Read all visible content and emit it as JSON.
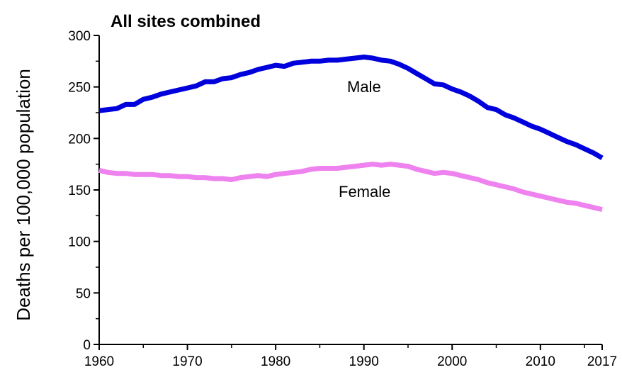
{
  "chart_data": {
    "type": "line",
    "title": "All sites combined",
    "xlabel": "",
    "ylabel": "Deaths per 100,000 population",
    "xlim": [
      1960,
      2017
    ],
    "ylim": [
      0,
      300
    ],
    "x_ticks": [
      1960,
      1970,
      1980,
      1990,
      2000,
      2010,
      2017
    ],
    "y_ticks": [
      0,
      50,
      100,
      150,
      200,
      250,
      300
    ],
    "grid": false,
    "legend": "none",
    "series": [
      {
        "name": "Male",
        "color": "#0000dd",
        "x": [
          1960,
          1961,
          1962,
          1963,
          1964,
          1965,
          1966,
          1967,
          1968,
          1969,
          1970,
          1971,
          1972,
          1973,
          1974,
          1975,
          1976,
          1977,
          1978,
          1979,
          1980,
          1981,
          1982,
          1983,
          1984,
          1985,
          1986,
          1987,
          1988,
          1989,
          1990,
          1991,
          1992,
          1993,
          1994,
          1995,
          1996,
          1997,
          1998,
          1999,
          2000,
          2001,
          2002,
          2003,
          2004,
          2005,
          2006,
          2007,
          2008,
          2009,
          2010,
          2011,
          2012,
          2013,
          2014,
          2015,
          2016,
          2017
        ],
        "values": [
          227,
          228,
          229,
          233,
          233,
          238,
          240,
          243,
          245,
          247,
          249,
          251,
          255,
          255,
          258,
          259,
          262,
          264,
          267,
          269,
          271,
          270,
          273,
          274,
          275,
          275,
          276,
          276,
          277,
          278,
          279,
          278,
          276,
          275,
          272,
          268,
          263,
          258,
          253,
          252,
          248,
          245,
          241,
          236,
          230,
          228,
          223,
          220,
          216,
          212,
          209,
          205,
          201,
          197,
          194,
          190,
          186,
          181
        ]
      },
      {
        "name": "Female",
        "color": "#ee82ee",
        "x": [
          1960,
          1961,
          1962,
          1963,
          1964,
          1965,
          1966,
          1967,
          1968,
          1969,
          1970,
          1971,
          1972,
          1973,
          1974,
          1975,
          1976,
          1977,
          1978,
          1979,
          1980,
          1981,
          1982,
          1983,
          1984,
          1985,
          1986,
          1987,
          1988,
          1989,
          1990,
          1991,
          1992,
          1993,
          1994,
          1995,
          1996,
          1997,
          1998,
          1999,
          2000,
          2001,
          2002,
          2003,
          2004,
          2005,
          2006,
          2007,
          2008,
          2009,
          2010,
          2011,
          2012,
          2013,
          2014,
          2015,
          2016,
          2017
        ],
        "values": [
          169,
          167,
          166,
          166,
          165,
          165,
          165,
          164,
          164,
          163,
          163,
          162,
          162,
          161,
          161,
          160,
          162,
          163,
          164,
          163,
          165,
          166,
          167,
          168,
          170,
          171,
          171,
          171,
          172,
          173,
          174,
          175,
          174,
          175,
          174,
          173,
          170,
          168,
          166,
          167,
          166,
          164,
          162,
          160,
          157,
          155,
          153,
          151,
          148,
          146,
          144,
          142,
          140,
          138,
          137,
          135,
          133,
          131
        ]
      }
    ],
    "annotations": [
      {
        "text": "Male",
        "series": "Male"
      },
      {
        "text": "Female",
        "series": "Female"
      }
    ]
  }
}
